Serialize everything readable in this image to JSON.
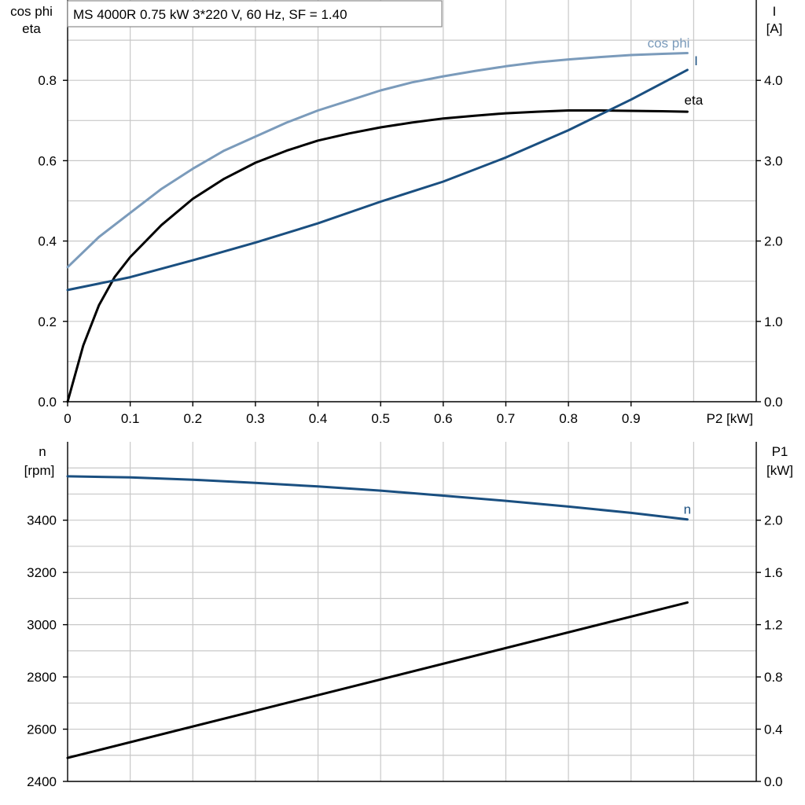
{
  "chart_data": [
    {
      "type": "line",
      "title": "MS 4000R   0.75 kW   3*220 V, 60 Hz, SF = 1.40",
      "xlabel": "P2 [kW]",
      "xlim": [
        0,
        1.1
      ],
      "x_ticks": [
        "0",
        "0.1",
        "0.2",
        "0.3",
        "0.4",
        "0.5",
        "0.6",
        "0.7",
        "0.8",
        "0.9"
      ],
      "ylabel_left": [
        "cos phi",
        "eta"
      ],
      "ylim_left": [
        0,
        1.0
      ],
      "y_ticks_left": [
        "0.0",
        "0.2",
        "0.4",
        "0.6",
        "0.8"
      ],
      "ylabel_right": [
        "I",
        "[A]"
      ],
      "ylim_right": [
        0,
        5.0
      ],
      "y_ticks_right": [
        "0.0",
        "1.0",
        "2.0",
        "3.0",
        "4.0"
      ],
      "grid": true,
      "series": [
        {
          "name": "cos phi",
          "axis": "left",
          "color": "#7b9bbb",
          "x": [
            0,
            0.05,
            0.1,
            0.15,
            0.2,
            0.25,
            0.3,
            0.35,
            0.4,
            0.45,
            0.5,
            0.55,
            0.6,
            0.65,
            0.7,
            0.75,
            0.8,
            0.85,
            0.9,
            0.95,
            0.99
          ],
          "y": [
            0.335,
            0.41,
            0.47,
            0.53,
            0.58,
            0.625,
            0.66,
            0.695,
            0.725,
            0.75,
            0.775,
            0.795,
            0.81,
            0.823,
            0.835,
            0.845,
            0.852,
            0.858,
            0.863,
            0.866,
            0.868
          ]
        },
        {
          "name": "eta",
          "axis": "left",
          "color": "#000000",
          "x": [
            0,
            0.025,
            0.05,
            0.075,
            0.1,
            0.15,
            0.2,
            0.25,
            0.3,
            0.35,
            0.4,
            0.45,
            0.5,
            0.55,
            0.6,
            0.65,
            0.7,
            0.75,
            0.8,
            0.85,
            0.9,
            0.95,
            0.99
          ],
          "y": [
            0.0,
            0.14,
            0.24,
            0.31,
            0.36,
            0.44,
            0.505,
            0.555,
            0.595,
            0.625,
            0.65,
            0.668,
            0.683,
            0.695,
            0.705,
            0.712,
            0.718,
            0.722,
            0.725,
            0.725,
            0.724,
            0.723,
            0.722
          ]
        },
        {
          "name": "I",
          "axis": "right",
          "color": "#1a4f80",
          "x": [
            0,
            0.1,
            0.2,
            0.3,
            0.4,
            0.5,
            0.6,
            0.7,
            0.8,
            0.9,
            0.99
          ],
          "y": [
            1.39,
            1.55,
            1.76,
            1.98,
            2.22,
            2.49,
            2.74,
            3.04,
            3.38,
            3.76,
            4.13
          ]
        }
      ]
    },
    {
      "type": "line",
      "xlim": [
        0,
        1.1
      ],
      "ylabel_left": [
        "n",
        "[rpm]"
      ],
      "ylim_left": [
        2400,
        3700
      ],
      "y_ticks_left": [
        "2400",
        "2600",
        "2800",
        "3000",
        "3200",
        "3400"
      ],
      "ylabel_right": [
        "P1",
        "[kW]"
      ],
      "ylim_right": [
        0.0,
        2.6
      ],
      "y_ticks_right": [
        "0.0",
        "0.4",
        "0.8",
        "1.2",
        "1.6",
        "2.0"
      ],
      "grid": true,
      "series": [
        {
          "name": "n",
          "axis": "left",
          "color": "#1a4f80",
          "x": [
            0,
            0.1,
            0.2,
            0.3,
            0.4,
            0.5,
            0.6,
            0.7,
            0.8,
            0.9,
            0.99
          ],
          "y": [
            3568,
            3564,
            3555,
            3543,
            3529,
            3513,
            3494,
            3474,
            3452,
            3428,
            3403
          ]
        },
        {
          "name": "",
          "axis": "right",
          "color": "#000000",
          "x": [
            0,
            0.99
          ],
          "y": [
            0.18,
            1.37
          ]
        }
      ]
    }
  ]
}
